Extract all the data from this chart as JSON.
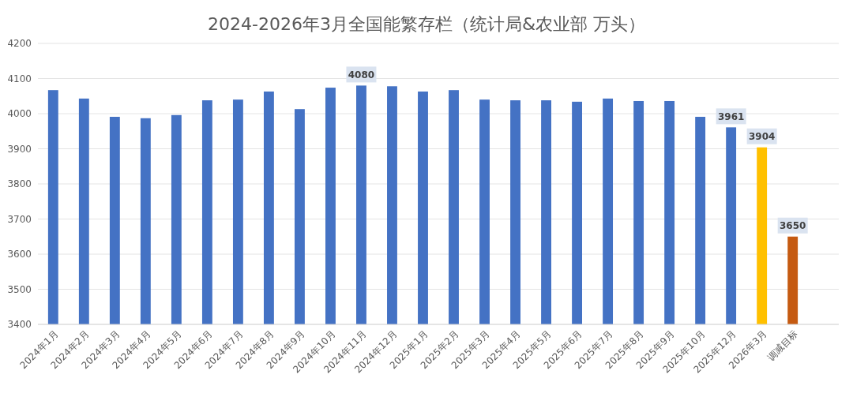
{
  "chart_data": {
    "type": "bar",
    "title": "2024-2026年3月全国能繁存栏（统计局&农业部 万头）",
    "categories": [
      "2024年1月",
      "2024年2月",
      "2024年3月",
      "2024年4月",
      "2024年5月",
      "2024年6月",
      "2024年7月",
      "2024年8月",
      "2024年9月",
      "2024年10月",
      "2024年11月",
      "2024年12月",
      "2025年1月",
      "2025年2月",
      "2025年3月",
      "2025年4月",
      "2025年5月",
      "2025年6月",
      "2025年7月",
      "2025年8月",
      "2025年9月",
      "2025年10月",
      "2025年12月",
      "2026年3月",
      "调减目标",
      null
    ],
    "values": [
      4067,
      4043,
      3991,
      3987,
      3996,
      4038,
      4040,
      4063,
      4013,
      4074,
      4080,
      4078,
      4063,
      4067,
      4040,
      4038,
      4038,
      4034,
      4043,
      4036,
      4036,
      3991,
      3961,
      3904,
      3650,
      null
    ],
    "colors": [
      "#4472c4",
      "#4472c4",
      "#4472c4",
      "#4472c4",
      "#4472c4",
      "#4472c4",
      "#4472c4",
      "#4472c4",
      "#4472c4",
      "#4472c4",
      "#4472c4",
      "#4472c4",
      "#4472c4",
      "#4472c4",
      "#4472c4",
      "#4472c4",
      "#4472c4",
      "#4472c4",
      "#4472c4",
      "#4472c4",
      "#4472c4",
      "#4472c4",
      "#4472c4",
      "#ffc000",
      "#c55a11",
      null
    ],
    "value_labels": [
      null,
      null,
      null,
      null,
      null,
      null,
      null,
      null,
      null,
      null,
      "4080",
      null,
      null,
      null,
      null,
      null,
      null,
      null,
      null,
      null,
      null,
      null,
      "3961",
      "3904",
      "3650",
      null
    ],
    "ylim": [
      3400,
      4200
    ],
    "yticks": [
      3400,
      3500,
      3600,
      3700,
      3800,
      3900,
      4000,
      4100,
      4200
    ],
    "grid": "y"
  }
}
